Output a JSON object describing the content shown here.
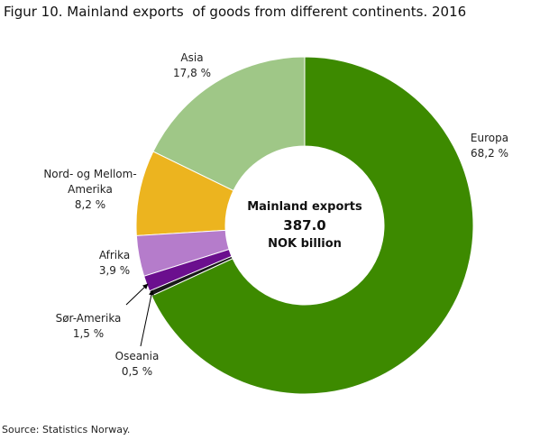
{
  "chart_data": {
    "type": "donut",
    "title": "Figur 10. Mainland exports  of goods from different continents. 2016",
    "center_text": [
      "Mainland exports",
      "387.0",
      "NOK billion"
    ],
    "categories": [
      "Europa",
      "Oseania",
      "Sør-Amerika",
      "Afrika",
      "Nord- og Mellom-Amerika",
      "Asia"
    ],
    "values": [
      68.2,
      0.5,
      1.5,
      3.9,
      8.2,
      17.8
    ],
    "value_labels": [
      "68,2 %",
      "0,5 %",
      "1,5 %",
      "3,9 %",
      "8,2 %",
      "17,8 %"
    ],
    "colors": [
      "#3d8a00",
      "#1a1a1a",
      "#6b0f8e",
      "#b57ccb",
      "#ecb41f",
      "#9fc787"
    ],
    "source": "Source: Statistics Norway."
  }
}
